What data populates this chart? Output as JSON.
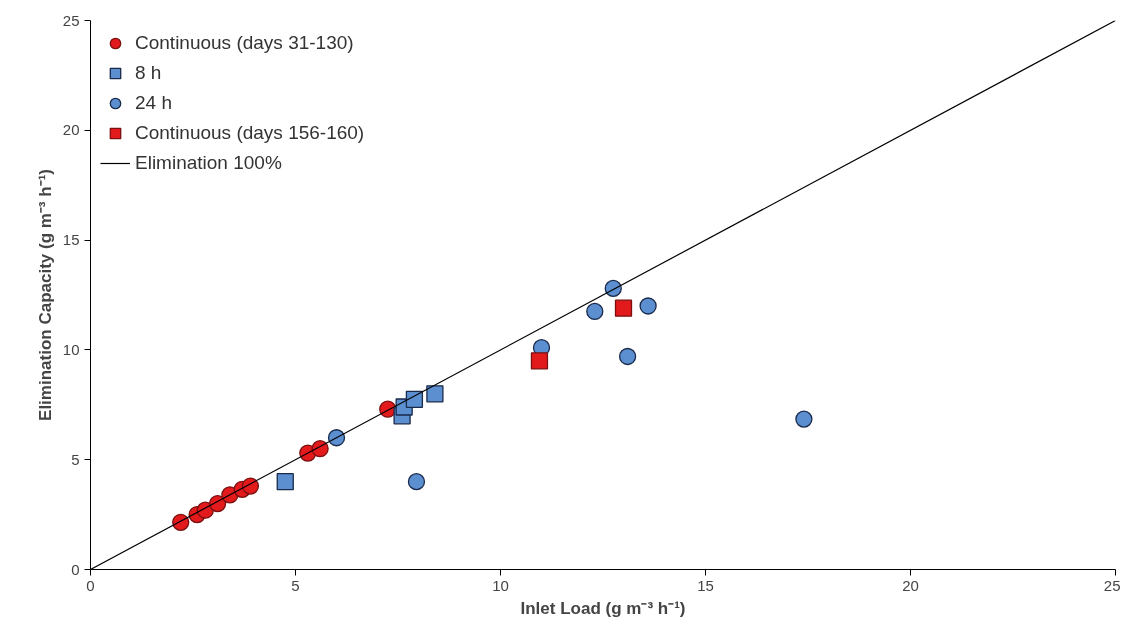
{
  "chart_data": {
    "type": "scatter",
    "xlabel": "Inlet Load (g m⁻³ h⁻¹)",
    "ylabel": "Elimination Capacity (g m⁻³ h⁻¹)",
    "xlim": [
      0,
      25
    ],
    "ylim": [
      0,
      25
    ],
    "xticks": [
      0,
      5,
      10,
      15,
      20,
      25
    ],
    "yticks": [
      0,
      5,
      10,
      15,
      20,
      25
    ],
    "grid": false,
    "legend": "top left",
    "series": [
      {
        "name": "Continuous (days 31-130)",
        "color": "#e31a1c",
        "marker": "circle",
        "x": [
          2.2,
          2.6,
          2.8,
          3.1,
          3.4,
          3.7,
          3.9,
          5.3,
          5.6,
          7.25
        ],
        "values": [
          2.15,
          2.5,
          2.7,
          3.0,
          3.4,
          3.65,
          3.8,
          5.3,
          5.5,
          7.3
        ]
      },
      {
        "name": "8 h",
        "color": "#5b8fd0",
        "marker": "square",
        "x": [
          4.75,
          7.6,
          7.65,
          7.9,
          8.4
        ],
        "values": [
          4.0,
          7.0,
          7.4,
          7.75,
          8.0
        ]
      },
      {
        "name": "24 h",
        "color": "#5b8fd0",
        "marker": "circle",
        "x": [
          6.0,
          7.95,
          11.0,
          12.3,
          12.75,
          13.1,
          13.6,
          17.4
        ],
        "values": [
          6.0,
          4.0,
          10.1,
          11.75,
          12.8,
          9.7,
          12.0,
          6.85
        ]
      },
      {
        "name": "Continuous (days 156-160)",
        "color": "#e31a1c",
        "marker": "square",
        "x": [
          10.95,
          13.0
        ],
        "values": [
          9.5,
          11.9
        ]
      },
      {
        "name": "Elimination 100%",
        "type": "line",
        "color": "#000000",
        "x": [
          0,
          25
        ],
        "values": [
          0,
          25
        ]
      }
    ]
  }
}
